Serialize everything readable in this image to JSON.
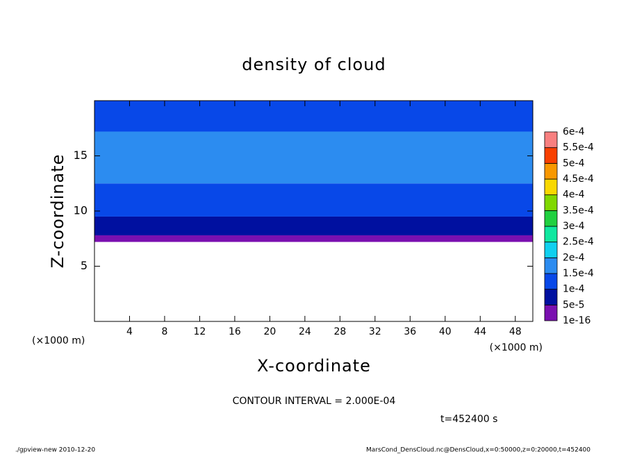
{
  "chart_data": {
    "type": "contour",
    "title": "density of cloud",
    "x_label": "X-coordinate",
    "y_label": "Z-coordinate",
    "x_unit": "(×1000 m)",
    "y_unit": "(×1000 m)",
    "xlim": [
      0,
      50
    ],
    "ylim": [
      0,
      20
    ],
    "xticks": [
      4,
      8,
      12,
      16,
      20,
      24,
      28,
      32,
      36,
      40,
      44,
      48
    ],
    "yticks": [
      5,
      10,
      15
    ],
    "layers": [
      {
        "z": [
          7.2,
          7.8
        ],
        "value": 2e-05
      },
      {
        "z": [
          7.8,
          9.5
        ],
        "value": 7e-05
      },
      {
        "z": [
          9.5,
          12.5
        ],
        "value": 0.00012
      },
      {
        "z": [
          12.5,
          17.2
        ],
        "value": 0.00016
      },
      {
        "z": [
          17.2,
          20
        ],
        "value": 0.00013
      }
    ],
    "colorbar": {
      "levels": [
        {
          "value": 1e-16,
          "label": "1e-16"
        },
        {
          "value": 5e-05,
          "label": "5e-5"
        },
        {
          "value": 0.0001,
          "label": "1e-4"
        },
        {
          "value": 0.00015,
          "label": "1.5e-4"
        },
        {
          "value": 0.0002,
          "label": "2e-4"
        },
        {
          "value": 0.00025,
          "label": "2.5e-4"
        },
        {
          "value": 0.0003,
          "label": "3e-4"
        },
        {
          "value": 0.00035,
          "label": "3.5e-4"
        },
        {
          "value": 0.0004,
          "label": "4e-4"
        },
        {
          "value": 0.00045,
          "label": "4.5e-4"
        },
        {
          "value": 0.0005,
          "label": "5e-4"
        },
        {
          "value": 0.00055,
          "label": "5.5e-4"
        },
        {
          "value": 0.0006,
          "label": "6e-4"
        }
      ],
      "colors": [
        "#7a10b0",
        "#0010a0",
        "#0848e8",
        "#2c8cf0",
        "#10d0f0",
        "#10e8a0",
        "#20d040",
        "#80d800",
        "#f8d800",
        "#f89800",
        "#f84000",
        "#f88080"
      ]
    },
    "contour_interval": "CONTOUR INTERVAL = 2.000E-04",
    "time_label": "t=452400 s",
    "footer_left": "./gpview-new   2010-12-20",
    "footer_right": "MarsCond_DensCloud.nc@DensCloud,x=0:50000,z=0:20000,t=452400"
  }
}
